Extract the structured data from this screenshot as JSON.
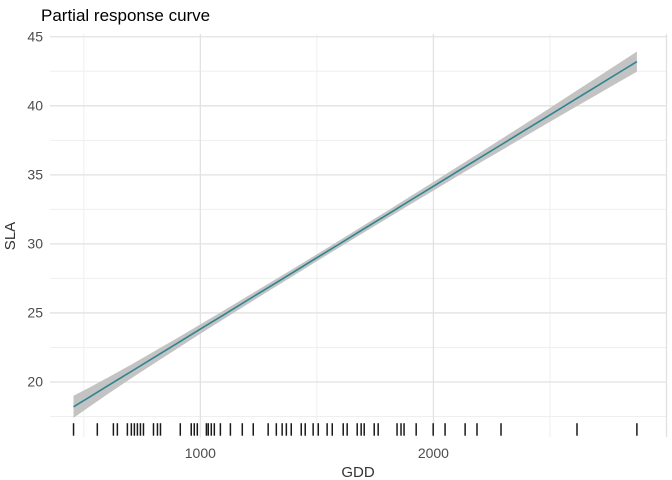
{
  "title": "Partial response curve",
  "chart_data": {
    "type": "line",
    "title": "Partial response curve",
    "xlabel": "GDD",
    "ylabel": "SLA",
    "xlim": [
      355,
      3000
    ],
    "ylim": [
      16,
      45.2
    ],
    "grid": true,
    "legend": false,
    "x_tick_labels": [
      1000,
      2000
    ],
    "x_major_gridlines": [
      1000,
      2000,
      3000
    ],
    "x_minor_gridlines": [
      500,
      1500,
      2500
    ],
    "y_tick_labels": [
      20,
      25,
      30,
      35,
      40,
      45
    ],
    "y_minor_gridlines": [
      17.5,
      22.5,
      27.5,
      32.5,
      37.5,
      42.5
    ],
    "series": [
      {
        "name": "partial-response-fit",
        "x": [
          456,
          520,
          600,
          700,
          800,
          900,
          1000,
          1100,
          1200,
          1300,
          1400,
          1500,
          1600,
          1700,
          1800,
          1900,
          2000,
          2100,
          2200,
          2300,
          2400,
          2500,
          2600,
          2700,
          2800,
          2873
        ],
        "y": [
          18.2,
          18.86,
          19.69,
          20.72,
          21.76,
          22.79,
          23.83,
          24.86,
          25.9,
          26.93,
          27.96,
          29.0,
          30.03,
          31.07,
          32.1,
          33.14,
          34.17,
          35.21,
          36.24,
          37.27,
          38.31,
          39.34,
          40.38,
          41.41,
          42.45,
          43.2
        ],
        "ci_lower": [
          17.4,
          18.16,
          19.09,
          20.22,
          21.32,
          22.41,
          23.49,
          24.55,
          25.61,
          26.66,
          27.7,
          28.75,
          29.78,
          30.81,
          31.83,
          32.85,
          33.86,
          34.87,
          35.87,
          36.86,
          37.86,
          38.84,
          39.82,
          40.79,
          41.77,
          42.47
        ],
        "ci_upper": [
          19.0,
          19.56,
          20.29,
          21.22,
          22.2,
          23.17,
          24.17,
          25.17,
          26.19,
          27.2,
          28.22,
          29.25,
          30.28,
          31.33,
          32.37,
          33.43,
          34.48,
          35.55,
          36.61,
          37.68,
          38.76,
          39.84,
          40.94,
          42.03,
          43.13,
          43.93
        ]
      }
    ],
    "rug_x": [
      456,
      558,
      627,
      644,
      687,
      704,
      717,
      730,
      743,
      756,
      799,
      816,
      829,
      914,
      961,
      974,
      987,
      1026,
      1034,
      1047,
      1060,
      1086,
      1129,
      1180,
      1227,
      1291,
      1326,
      1351,
      1369,
      1390,
      1433,
      1450,
      1484,
      1506,
      1544,
      1566,
      1613,
      1630,
      1673,
      1690,
      1703,
      1746,
      1763,
      1844,
      1861,
      1874,
      1926,
      1999,
      2050,
      2136,
      2187,
      2290,
      2616,
      2873
    ],
    "colors": {
      "line": "#2e8490",
      "ribbon": "#c3c3c3",
      "grid_major": "#e2e2e2",
      "grid_minor": "#efefef",
      "tick_text": "#4d4d4d",
      "axis_title": "#333333",
      "title_text": "#000000",
      "rug": "#1a1a1a",
      "background": "#ffffff"
    }
  }
}
